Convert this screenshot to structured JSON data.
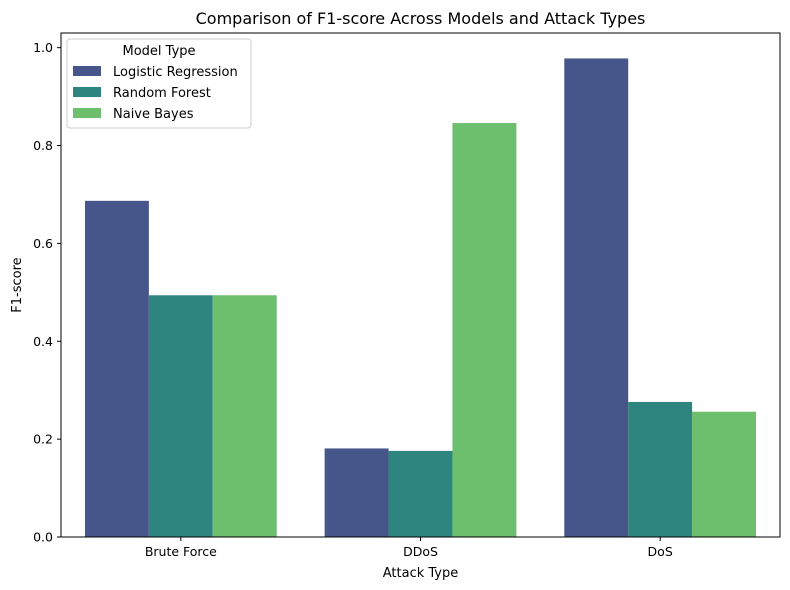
{
  "chart_data": {
    "type": "bar",
    "title": "Comparison of F1-score Across Models and Attack Types",
    "xlabel": "Attack Type",
    "ylabel": "F1-score",
    "categories": [
      "Brute Force",
      "DDoS",
      "DoS"
    ],
    "ylim": [
      0,
      1.03
    ],
    "yticks": [
      "0.0",
      "0.2",
      "0.4",
      "0.6",
      "0.8",
      "1.0"
    ],
    "grid": false,
    "legend": {
      "title": "Model Type",
      "placement": "top-left"
    },
    "series": [
      {
        "name": "Logistic Regression",
        "color": "#46568a",
        "values": [
          0.687,
          0.181,
          0.978
        ]
      },
      {
        "name": "Random Forest",
        "color": "#2e857f",
        "values": [
          0.494,
          0.176,
          0.276
        ]
      },
      {
        "name": "Naive Bayes",
        "color": "#6cbf6c",
        "values": [
          0.494,
          0.846,
          0.256
        ]
      }
    ]
  }
}
